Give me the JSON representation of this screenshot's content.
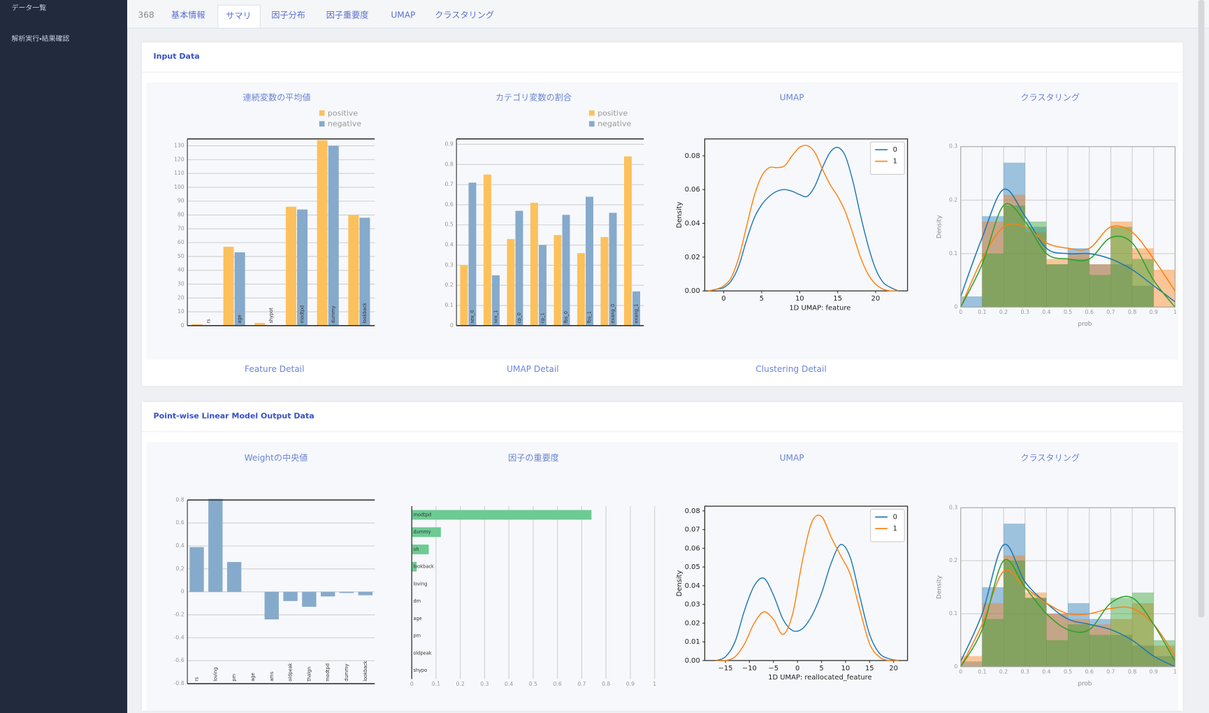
{
  "sidebar": {
    "items": [
      "データ一覧",
      "解析実行・結果確認"
    ]
  },
  "tabs": {
    "items": [
      "368",
      "基本情報",
      "サマリ",
      "因子分布",
      "因子重要度",
      "UMAP",
      "クラスタリング"
    ],
    "active": "サマリ"
  },
  "sections": [
    {
      "title": "Input Data",
      "links": [
        "Feature Detail",
        "UMAP Detail",
        "Clustering Detail"
      ],
      "charts": [
        {
          "type": "bar",
          "title": "連続変数の平均値",
          "legend": "top",
          "categories": [
            "rs",
            "age",
            "shypot",
            "modtpd",
            "dummy",
            "lookback"
          ],
          "series": [
            {
              "name": "positive",
              "color": "#fcc15c",
              "values": [
                1,
                57,
                2,
                86,
                134,
                80
              ]
            },
            {
              "name": "negative",
              "color": "#86aacb",
              "values": [
                0,
                53,
                0,
                84,
                130,
                78
              ]
            }
          ],
          "ylim": [
            0,
            135
          ],
          "yticks": [
            0,
            10,
            20,
            30,
            40,
            50,
            60,
            70,
            80,
            90,
            100,
            110,
            120,
            130
          ],
          "grid": true
        },
        {
          "type": "bar",
          "title": "カテゴリ変数の割合",
          "legend": "top",
          "categories": [
            "sex_0",
            "sex_1",
            "cp_0",
            "cp_1",
            "fbs_0",
            "fbs_1",
            "exang_0",
            "exang_1"
          ],
          "series": [
            {
              "name": "positive",
              "color": "#fcc15c",
              "values": [
                0.3,
                0.75,
                0.43,
                0.61,
                0.45,
                0.36,
                0.44,
                0.84
              ]
            },
            {
              "name": "negative",
              "color": "#86aacb",
              "values": [
                0.71,
                0.25,
                0.57,
                0.4,
                0.55,
                0.64,
                0.56,
                0.17
              ]
            }
          ],
          "ylim": [
            0,
            0.927
          ],
          "yticks": [
            0,
            0.1,
            0.2,
            0.3,
            0.4,
            0.5,
            0.6,
            0.7,
            0.8,
            0.9
          ],
          "grid": true
        },
        {
          "type": "line",
          "title": "UMAP",
          "legend": "upper right",
          "xlabel": "1D UMAP: feature",
          "ylabel": "Density",
          "x": [
            -2,
            -1,
            0,
            1,
            2,
            3,
            4,
            5,
            6,
            7,
            8,
            9,
            10,
            11,
            12,
            13,
            14,
            15,
            16,
            17,
            18,
            19,
            20,
            21,
            22,
            23
          ],
          "series": [
            {
              "name": "0",
              "color": "#1f77b4",
              "values": [
                0,
                0.001,
                0.002,
                0.006,
                0.015,
                0.03,
                0.043,
                0.051,
                0.056,
                0.059,
                0.06,
                0.059,
                0.057,
                0.056,
                0.062,
                0.073,
                0.082,
                0.085,
                0.08,
                0.065,
                0.045,
                0.027,
                0.013,
                0.005,
                0.002,
                0
              ]
            },
            {
              "name": "1",
              "color": "#ff7f0e",
              "values": [
                0,
                0.001,
                0.003,
                0.008,
                0.02,
                0.038,
                0.056,
                0.068,
                0.073,
                0.073,
                0.074,
                0.08,
                0.085,
                0.086,
                0.082,
                0.072,
                0.063,
                0.056,
                0.047,
                0.034,
                0.02,
                0.01,
                0.004,
                0.001,
                0,
                0
              ]
            }
          ],
          "xlim": [
            -2.5,
            24.2
          ],
          "xticks": [
            0,
            5,
            10,
            15,
            20
          ],
          "ylim": [
            0,
            0.09
          ],
          "yticks": [
            {
              "value": 0,
              "label": "0.00"
            },
            {
              "value": 0.02,
              "label": "0.02"
            },
            {
              "value": 0.04,
              "label": "0.04"
            },
            {
              "value": 0.06,
              "label": "0.06"
            },
            {
              "value": 0.08,
              "label": "0.08"
            }
          ]
        },
        {
          "type": "histogram",
          "title": "クラスタリング",
          "xlabel": "prob",
          "ylabel": "Density",
          "grid": true,
          "bins": [
            0,
            0.1,
            0.2,
            0.3,
            0.4,
            0.5,
            0.6,
            0.7,
            0.8,
            0.9,
            1
          ],
          "x": [
            0,
            0.1,
            0.2,
            0.3,
            0.4,
            0.5,
            0.6,
            0.7,
            0.8,
            0.9,
            1
          ],
          "series": [
            {
              "color": "#1f77b4",
              "values": [
                0.02,
                0.17,
                0.27,
                0.15,
                0.08,
                0.11,
                0.08,
                0.08,
                0.04,
                0
              ],
              "density": [
                0.02,
                0.13,
                0.22,
                0.17,
                0.11,
                0.1,
                0.1,
                0.09,
                0.07,
                0.04,
                0.01
              ]
            },
            {
              "color": "#ff7f0e",
              "values": [
                0,
                0.16,
                0.21,
                0.14,
                0.09,
                0.1,
                0.08,
                0.16,
                0.11,
                0.07
              ],
              "density": [
                0,
                0.09,
                0.15,
                0.15,
                0.12,
                0.11,
                0.11,
                0.15,
                0.14,
                0.09,
                0.03
              ]
            },
            {
              "color": "#2ca02c",
              "values": [
                0,
                0.1,
                0.19,
                0.16,
                0.08,
                0.09,
                0.06,
                0.15,
                0.09,
                0
              ],
              "density": [
                0,
                0.08,
                0.19,
                0.16,
                0.1,
                0.09,
                0.09,
                0.13,
                0.12,
                0.05,
                0
              ]
            }
          ],
          "xlim": [
            0,
            1
          ],
          "xticks": [
            0,
            0.1,
            0.2,
            0.3,
            0.4,
            0.5,
            0.6,
            0.7,
            0.8,
            0.9,
            1
          ],
          "ylim": [
            0,
            0.3
          ],
          "yticks": [
            0,
            0.1,
            0.2,
            0.3
          ]
        }
      ]
    },
    {
      "title": "Point-wise Linear Model Output Data",
      "charts": [
        {
          "type": "bar",
          "title": "Weightの中央値",
          "categories": [
            "rs",
            "loving",
            "pm",
            "age",
            "ams",
            "oldpeak",
            "thalgn",
            "modtpd",
            "dummy",
            "lookback"
          ],
          "series": [
            {
              "color": "#86aacb",
              "values": [
                0.39,
                0.81,
                0.26,
                0,
                -0.24,
                -0.08,
                -0.13,
                -0.04,
                -0.01,
                -0.03
              ]
            }
          ],
          "ylim": [
            -0.8,
            0.8
          ],
          "yticks": [
            -0.8,
            -0.6,
            -0.4,
            -0.2,
            0,
            0.2,
            0.4,
            0.6,
            0.8
          ],
          "grid": true
        },
        {
          "type": "barh",
          "title": "因子の重要度",
          "title_color": "#3dbb7e",
          "categories": [
            "modtpd",
            "dummy",
            "oh",
            "lookback",
            "loving",
            "dm",
            "age",
            "pm",
            "oldpeak",
            "shypo"
          ],
          "values": [
            0.74,
            0.12,
            0.07,
            0.02,
            0,
            0,
            0,
            0,
            0,
            0
          ],
          "color": "#6ccb93",
          "xlim": [
            0,
            1
          ],
          "xticks": [
            0,
            0.1,
            0.2,
            0.3,
            0.4,
            0.5,
            0.6,
            0.7,
            0.8,
            0.9,
            1
          ],
          "grid": true
        },
        {
          "type": "line",
          "title": "UMAP",
          "legend": "upper right",
          "xlabel": "1D UMAP: reallocated_feature",
          "ylabel": "Density",
          "x": [
            -17,
            -15,
            -13,
            -11,
            -9,
            -7,
            -5,
            -3,
            -1,
            1,
            3,
            5,
            7,
            9,
            11,
            13,
            15,
            17,
            19,
            21
          ],
          "series": [
            {
              "name": "0",
              "color": "#1f77b4",
              "values": [
                0,
                0.002,
                0.01,
                0.027,
                0.04,
                0.044,
                0.035,
                0.022,
                0.016,
                0.017,
                0.024,
                0.036,
                0.052,
                0.062,
                0.055,
                0.034,
                0.014,
                0.004,
                0.001,
                0
              ]
            },
            {
              "name": "1",
              "color": "#ff7f0e",
              "values": [
                0,
                0,
                0.002,
                0.009,
                0.02,
                0.026,
                0.022,
                0.014,
                0.025,
                0.053,
                0.074,
                0.077,
                0.066,
                0.056,
                0.046,
                0.027,
                0.009,
                0.002,
                0,
                0
              ]
            }
          ],
          "xlim": [
            -19.3,
            22.9
          ],
          "xticks": [
            {
              "value": -15,
              "label": "−15"
            },
            {
              "value": -10,
              "label": "−10"
            },
            {
              "value": -5,
              "label": "−5"
            },
            0,
            5,
            10,
            15,
            20
          ],
          "ylim": [
            0,
            0.0825
          ],
          "yticks": [
            {
              "value": 0,
              "label": "0.00"
            },
            0.01,
            0.02,
            0.03,
            0.04,
            0.05,
            0.06,
            0.07,
            0.08
          ]
        },
        {
          "type": "histogram",
          "title": "クラスタリング",
          "xlabel": "prob",
          "ylabel": "Density",
          "grid": true,
          "bins": [
            0,
            0.1,
            0.2,
            0.3,
            0.4,
            0.5,
            0.6,
            0.7,
            0.8,
            0.9,
            1
          ],
          "x": [
            0,
            0.1,
            0.2,
            0.3,
            0.4,
            0.5,
            0.6,
            0.7,
            0.8,
            0.9,
            1
          ],
          "series": [
            {
              "color": "#1f77b4",
              "values": [
                0.01,
                0.15,
                0.27,
                0.13,
                0.1,
                0.12,
                0.09,
                0.06,
                0.04,
                0.02
              ],
              "density": [
                0.01,
                0.1,
                0.23,
                0.16,
                0.12,
                0.09,
                0.08,
                0.07,
                0.05,
                0.02,
                0
              ]
            },
            {
              "color": "#ff7f0e",
              "values": [
                0.02,
                0.12,
                0.21,
                0.14,
                0.1,
                0.09,
                0.08,
                0.09,
                0.12,
                0.04
              ],
              "density": [
                0,
                0.08,
                0.18,
                0.15,
                0.12,
                0.1,
                0.1,
                0.11,
                0.11,
                0.08,
                0.02
              ]
            },
            {
              "color": "#2ca02c",
              "values": [
                0,
                0.09,
                0.2,
                0.13,
                0.05,
                0.08,
                0.06,
                0.13,
                0.14,
                0.05
              ],
              "density": [
                0,
                0.07,
                0.2,
                0.15,
                0.1,
                0.07,
                0.07,
                0.12,
                0.13,
                0.08,
                0.01
              ]
            }
          ],
          "xlim": [
            0,
            1
          ],
          "xticks": [
            0,
            0.1,
            0.2,
            0.3,
            0.4,
            0.5,
            0.6,
            0.7,
            0.8,
            0.9,
            1
          ],
          "ylim": [
            0,
            0.3
          ],
          "yticks": [
            0,
            0.1,
            0.2,
            0.3
          ]
        }
      ]
    }
  ]
}
